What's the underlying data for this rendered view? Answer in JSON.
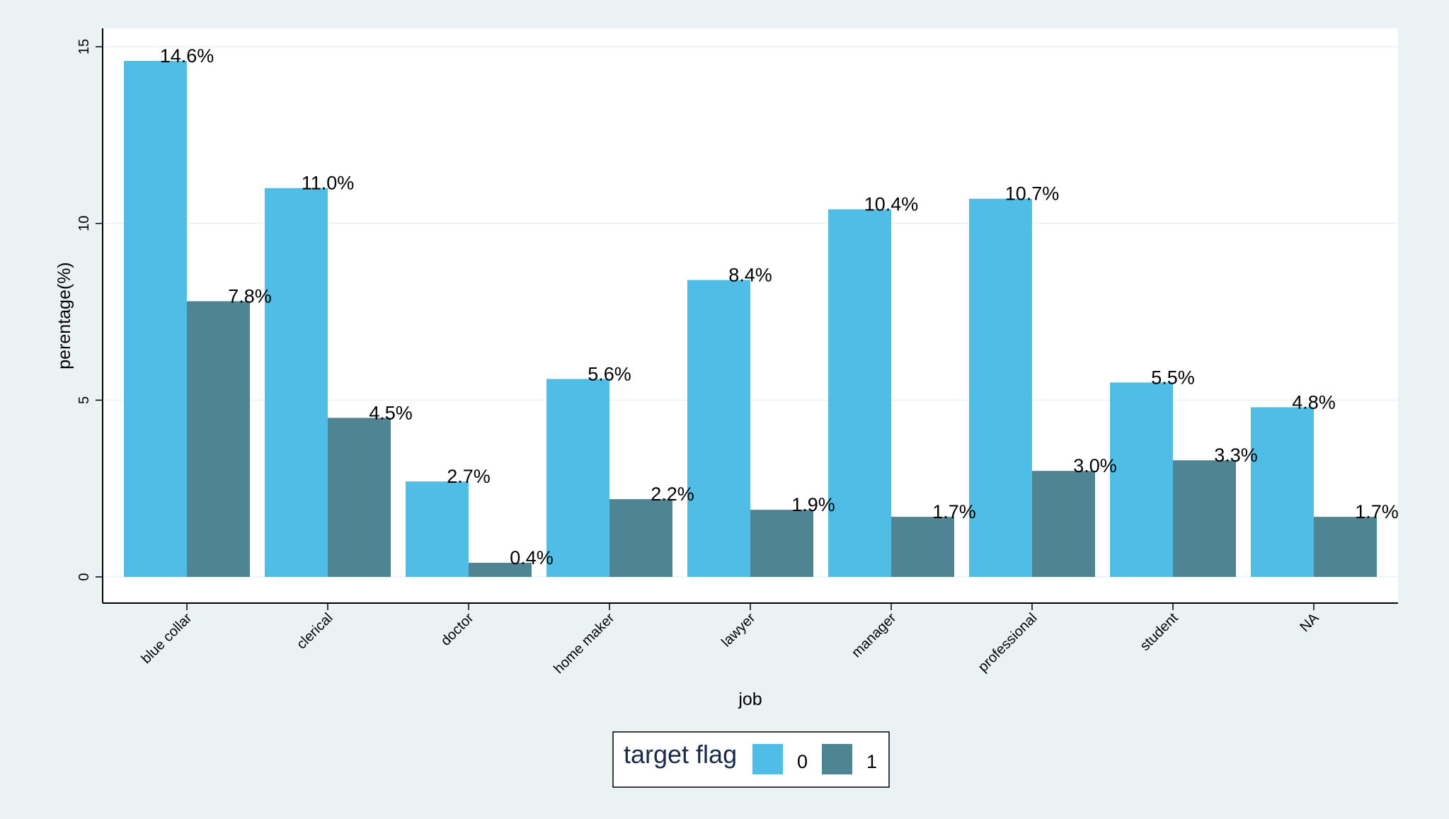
{
  "chart_data": {
    "type": "bar",
    "title": "",
    "xlabel": "job",
    "ylabel": "perentage(%)",
    "ylim": [
      0,
      15
    ],
    "yticks": [
      0,
      5,
      10,
      15
    ],
    "grid": true,
    "legend_placement": "bottom-center",
    "legend_title": "target flag",
    "categories": [
      "blue collar",
      "clerical",
      "doctor",
      "home maker",
      "lawyer",
      "manager",
      "professional",
      "student",
      "NA"
    ],
    "series": [
      {
        "name": "0",
        "color": "#4fbde5",
        "values": [
          14.6,
          11.0,
          2.7,
          5.6,
          8.4,
          10.4,
          10.7,
          5.5,
          4.8
        ],
        "labels": [
          "14.6%",
          "11.0%",
          "2.7%",
          "5.6%",
          "8.4%",
          "10.4%",
          "10.7%",
          "5.5%",
          "4.8%"
        ]
      },
      {
        "name": "1",
        "color": "#4f8593",
        "values": [
          7.8,
          4.5,
          0.4,
          2.2,
          1.9,
          1.7,
          3.0,
          3.3,
          1.7
        ],
        "labels": [
          "7.8%",
          "4.5%",
          "0.4%",
          "2.2%",
          "1.9%",
          "1.7%",
          "3.0%",
          "3.3%",
          "1.7%"
        ]
      }
    ]
  }
}
